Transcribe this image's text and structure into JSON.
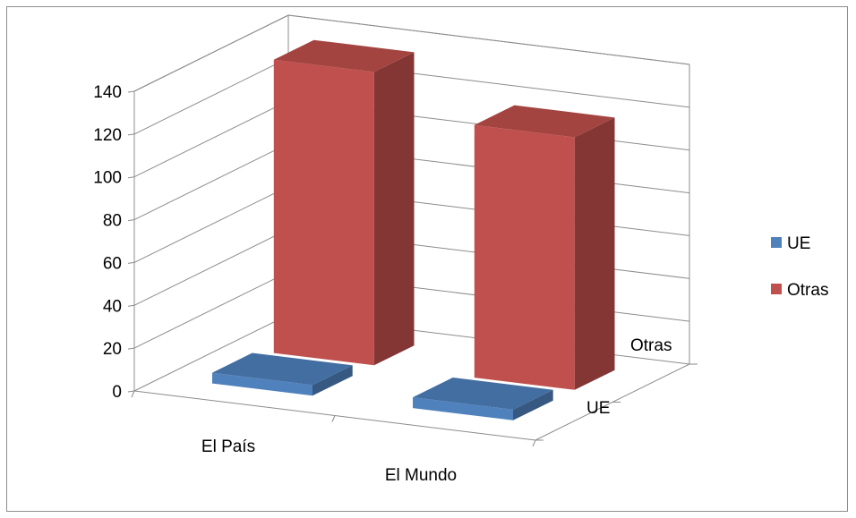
{
  "chart_data": {
    "type": "bar",
    "subtype": "3d-column",
    "categories": [
      "El País",
      "El Mundo"
    ],
    "depth_categories": [
      "UE",
      "Otras"
    ],
    "series": [
      {
        "name": "UE",
        "values": [
          5,
          5
        ],
        "color": "#4f81bd"
      },
      {
        "name": "Otras",
        "values": [
          137,
          118
        ],
        "color": "#c0504d"
      }
    ],
    "yticks": [
      "0",
      "20",
      "40",
      "60",
      "80",
      "100",
      "120",
      "140"
    ],
    "ylim": [
      0,
      140
    ],
    "grid": true,
    "legend": {
      "position": "right",
      "entries": [
        "UE",
        "Otras"
      ]
    }
  }
}
